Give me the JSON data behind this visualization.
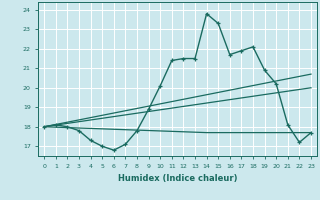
{
  "xlabel": "Humidex (Indice chaleur)",
  "bg_color": "#cce8ed",
  "grid_color": "#ffffff",
  "line_color": "#1a6b60",
  "xlim": [
    -0.5,
    23.5
  ],
  "ylim": [
    16.5,
    24.4
  ],
  "yticks": [
    17,
    18,
    19,
    20,
    21,
    22,
    23,
    24
  ],
  "xticks": [
    0,
    1,
    2,
    3,
    4,
    5,
    6,
    7,
    8,
    9,
    10,
    11,
    12,
    13,
    14,
    15,
    16,
    17,
    18,
    19,
    20,
    21,
    22,
    23
  ],
  "line1_x": [
    0,
    1,
    2,
    3,
    4,
    5,
    6,
    7,
    8,
    9,
    10,
    11,
    12,
    13,
    14,
    15,
    16,
    17,
    18,
    19,
    20,
    21,
    22,
    23
  ],
  "line1_y": [
    18.0,
    18.1,
    18.0,
    17.8,
    17.3,
    17.0,
    16.8,
    17.1,
    17.8,
    18.9,
    20.1,
    21.4,
    21.5,
    21.5,
    23.8,
    23.3,
    21.7,
    21.9,
    22.1,
    20.9,
    20.2,
    18.1,
    17.2,
    17.7
  ],
  "line2_x": [
    0,
    23
  ],
  "line2_y": [
    18.0,
    20.7
  ],
  "line3_x": [
    0,
    23
  ],
  "line3_y": [
    18.0,
    20.0
  ],
  "line4_x": [
    0,
    14,
    19,
    23
  ],
  "line4_y": [
    18.0,
    17.7,
    17.7,
    17.7
  ]
}
